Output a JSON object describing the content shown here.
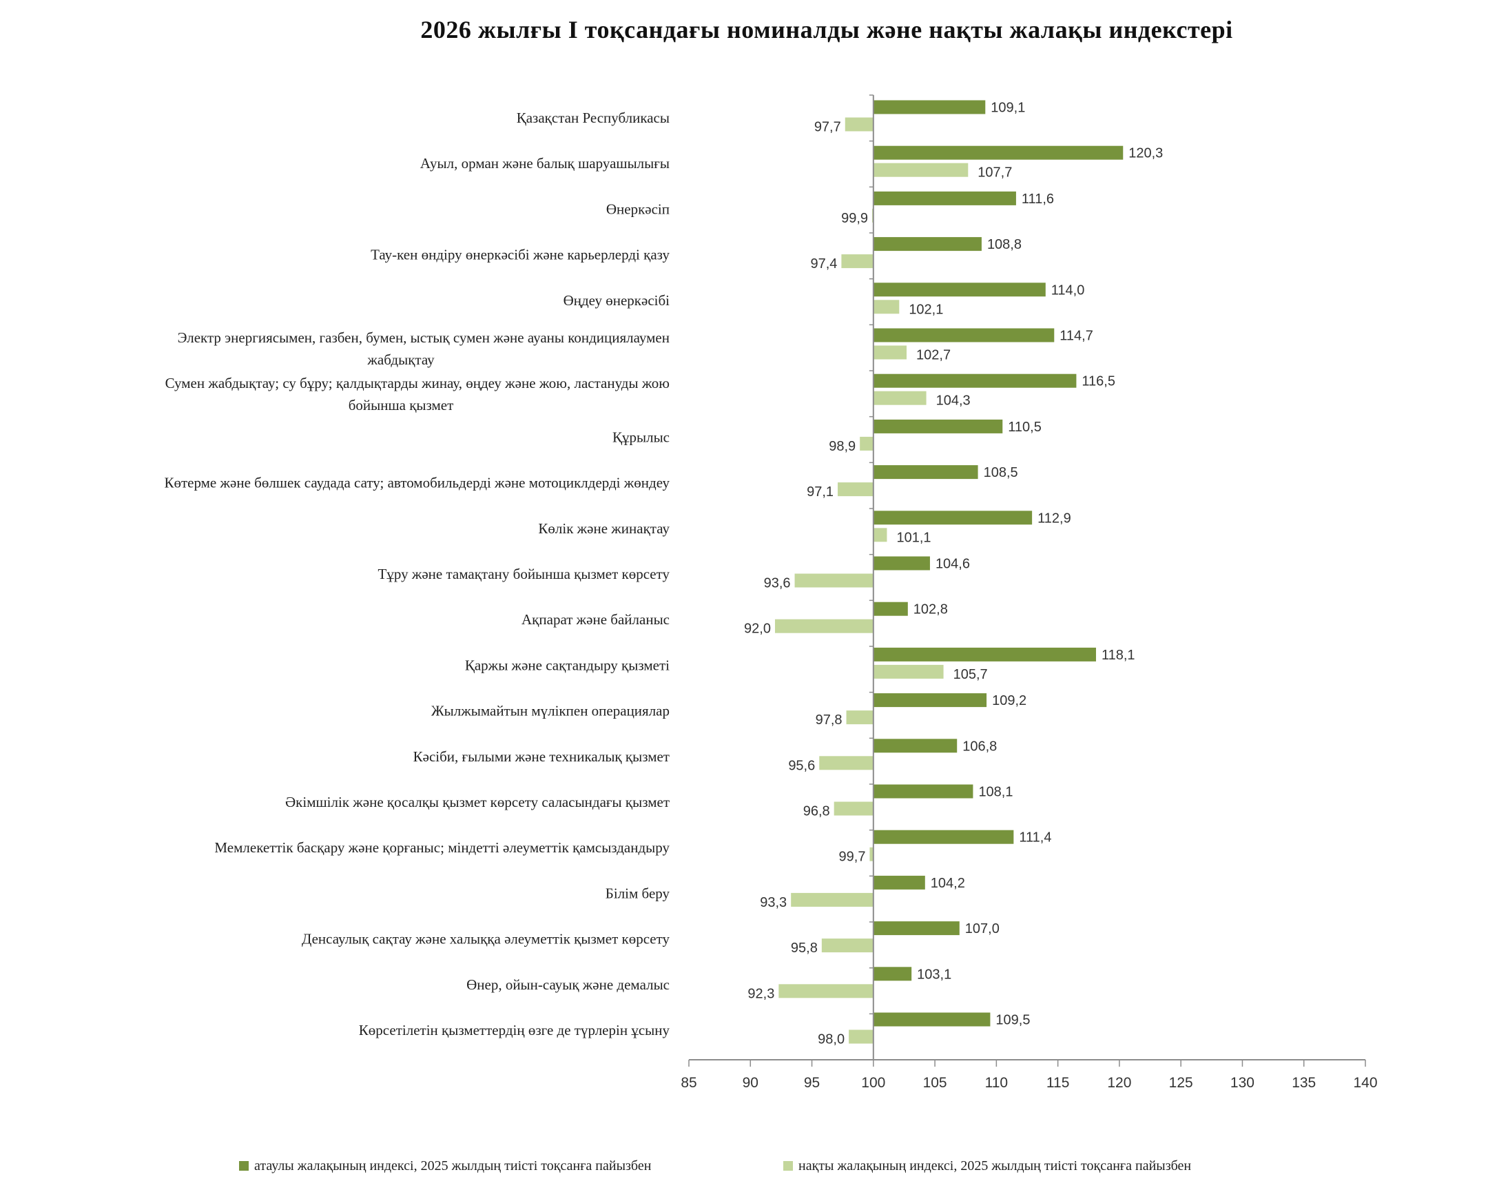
{
  "chart_data": {
    "type": "bar",
    "orientation": "horizontal",
    "title": "2026 жылғы І тоқсандағы номиналды және нақты жалақы индекстері",
    "categories": [
      [
        "Қазақстан  Республикасы"
      ],
      [
        "Ауыл, орман және балық шаруашылығы"
      ],
      [
        "Өнеркәсіп"
      ],
      [
        "Тау-кен өндіру өнеркәсібі  және  карьерлерді  қазу"
      ],
      [
        "Өңдеу  өнеркәсібі"
      ],
      [
        "Электр  энергиясымен,  газбен,  бумен,  ыстық сумен  және  ауаны  кондициялаумен",
        "жабдықтау"
      ],
      [
        "Сумен  жабдықтау; су  бұру; қалдықтарды  жинау,  өңдеу  және  жою,  ластануды  жою",
        "бойынша  қызмет"
      ],
      [
        "Құрылыс"
      ],
      [
        "Көтерме  және  бөлшек  саудада  сату;  автомобильдерді  және  мотоциклдерді   жөндеу"
      ],
      [
        "Көлік  және  жинақтау"
      ],
      [
        "Тұру және  тамақтану  бойынша  қызмет  көрсету"
      ],
      [
        "Ақпарат  және  байланыс"
      ],
      [
        "Қаржы және  сақтандыру  қызметі"
      ],
      [
        "Жылжымайтын  мүлікпен  операциялар"
      ],
      [
        "Кәсіби,  ғылыми  және  техникалық  қызмет"
      ],
      [
        "Әкімшілік және  қосалқы  қызмет  көрсету  саласындағы  қызмет"
      ],
      [
        "Мемлекеттік  басқару  және  қорғаныс;  міндетті  әлеуметтік  қамсыздандыру"
      ],
      [
        "Білім  беру"
      ],
      [
        "Денсаулық  сақтау  және  халыққа  әлеуметтік  қызмет  көрсету"
      ],
      [
        "Өнер,  ойын-сауық  және  демалыс"
      ],
      [
        "Көрсетілетін  қызметтердің  өзге  де  түрлерін  ұсыну"
      ]
    ],
    "series": [
      {
        "name": "атаулы  жалақының  индексі,  2025  жылдың  тиісті  тоқсанға  пайызбен",
        "color": "#77933c",
        "values": [
          109.1,
          120.3,
          111.6,
          108.8,
          114.0,
          114.7,
          116.5,
          110.5,
          108.5,
          112.9,
          104.6,
          102.8,
          118.1,
          109.2,
          106.8,
          108.1,
          111.4,
          104.2,
          107.0,
          103.1,
          109.5
        ],
        "labels": [
          "109,1",
          "120,3",
          "111,6",
          "108,8",
          "114,0",
          "114,7",
          "116,5",
          "110,5",
          "108,5",
          "112,9",
          "104,6",
          "102,8",
          "118,1",
          "109,2",
          "106,8",
          "108,1",
          "111,4",
          "104,2",
          "107,0",
          "103,1",
          "109,5"
        ]
      },
      {
        "name": "нақты  жалақының  индексі,  2025  жылдың  тиісті  тоқсанға  пайызбен",
        "color": "#c3d69b",
        "values": [
          97.7,
          107.7,
          99.9,
          97.4,
          102.1,
          102.7,
          104.3,
          98.9,
          97.1,
          101.1,
          93.6,
          92.0,
          105.7,
          97.8,
          95.6,
          96.8,
          99.7,
          93.3,
          95.8,
          92.3,
          98.0
        ],
        "labels": [
          "97,7",
          "107,7",
          "99,9",
          "97,4",
          "102,1",
          "102,7",
          "104,3",
          "98,9",
          "97,1",
          "101,1",
          "93,6",
          "92,0",
          "105,7",
          "97,8",
          "95,6",
          "96,8",
          "99,7",
          "93,3",
          "95,8",
          "92,3",
          "98,0"
        ]
      }
    ],
    "baseline": 100,
    "xlim": [
      85,
      140
    ],
    "xticks": [
      85,
      90,
      95,
      100,
      105,
      110,
      115,
      120,
      125,
      130,
      135,
      140
    ],
    "grid": false,
    "legend": "bottom"
  }
}
